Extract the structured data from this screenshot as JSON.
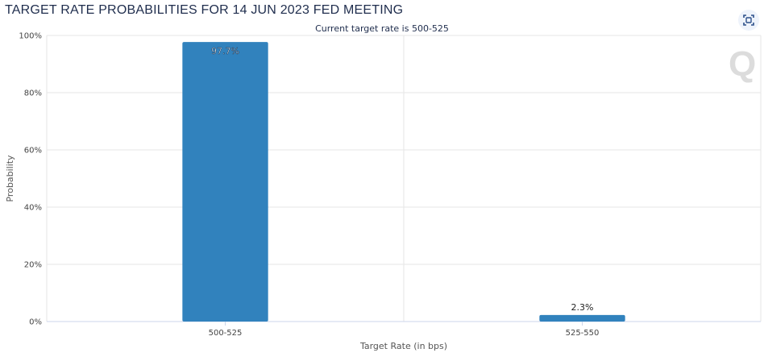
{
  "page": {
    "title": "TARGET RATE PROBABILITIES FOR 14 JUN 2023 FED MEETING",
    "subtitle": "Current target rate is 500-525",
    "watermark": "Q",
    "icons": {
      "scan": "scan-icon"
    }
  },
  "chart_data": {
    "type": "bar",
    "categories": [
      "500-525",
      "525-550"
    ],
    "values": [
      97.7,
      2.3
    ],
    "data_labels": [
      "97.7%",
      "2.3%"
    ],
    "title": "TARGET RATE PROBABILITIES FOR 14 JUN 2023 FED MEETING",
    "subtitle": "Current target rate is 500-525",
    "xlabel": "Target Rate (in bps)",
    "ylabel": "Probability",
    "ylim": [
      0,
      100
    ],
    "yticks": [
      0,
      20,
      40,
      60,
      80,
      100
    ],
    "ytick_labels": [
      "0%",
      "20%",
      "40%",
      "60%",
      "80%",
      "100%"
    ],
    "grid": true,
    "colors": {
      "bar": "#3182bd"
    }
  }
}
